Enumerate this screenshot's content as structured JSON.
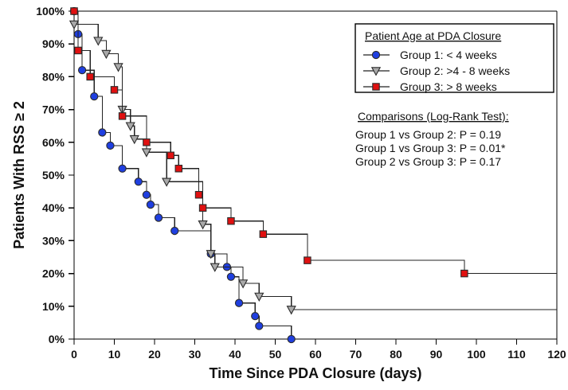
{
  "colors": {
    "background": "#ffffff",
    "axis": "#000000",
    "line": "#222222",
    "group1": "#1f3fe0",
    "group2": "#a9a9a9",
    "group3": "#e01010",
    "marker_stroke": "#2b2b2b"
  },
  "chart_data": {
    "type": "line",
    "title": "",
    "xlabel": "Time Since PDA Closure (days)",
    "ylabel": "Patients With RSS ≥ 2",
    "xlim": [
      0,
      120
    ],
    "ylim": [
      0,
      100
    ],
    "x_ticks": [
      0,
      10,
      20,
      30,
      40,
      50,
      60,
      70,
      80,
      90,
      100,
      110,
      120
    ],
    "y_ticks": [
      0,
      10,
      20,
      30,
      40,
      50,
      60,
      70,
      80,
      90,
      100
    ],
    "y_tick_labels": [
      "0%",
      "10%",
      "20%",
      "30%",
      "40%",
      "50%",
      "60%",
      "70%",
      "80%",
      "90%",
      "100%"
    ],
    "grid": false,
    "legend_position": "top-right",
    "legend": {
      "title": "Patient Age at PDA Closure",
      "entries": [
        {
          "label": "Group 1: < 4 weeks",
          "marker": "circle",
          "color": "#1f3fe0"
        },
        {
          "label": "Group 2: >4 - 8 weeks",
          "marker": "triangle-down",
          "color": "#a9a9a9"
        },
        {
          "label": "Group 3: > 8 weeks",
          "marker": "square",
          "color": "#e01010"
        }
      ]
    },
    "comparisons": {
      "title": "Comparisons (Log-Rank Test):",
      "lines": [
        "Group 1 vs Group 2: P = 0.19",
        "Group 1 vs Group 3: P = 0.01*",
        "Group 2 vs Group 3: P = 0.17"
      ]
    },
    "series": [
      {
        "name": "Group 1: < 4 weeks",
        "marker": "circle",
        "color": "#1f3fe0",
        "points": [
          [
            0,
            100
          ],
          [
            1,
            93
          ],
          [
            2,
            82
          ],
          [
            5,
            74
          ],
          [
            7,
            63
          ],
          [
            9,
            59
          ],
          [
            12,
            52
          ],
          [
            16,
            48
          ],
          [
            18,
            44
          ],
          [
            19,
            41
          ],
          [
            21,
            37
          ],
          [
            25,
            33
          ],
          [
            34,
            26
          ],
          [
            38,
            22
          ],
          [
            39,
            19
          ],
          [
            41,
            11
          ],
          [
            45,
            7
          ],
          [
            46,
            4
          ],
          [
            54,
            0
          ]
        ],
        "end_x": 54,
        "end_y": 0
      },
      {
        "name": "Group 2: >4 - 8 weeks",
        "marker": "triangle-down",
        "color": "#a9a9a9",
        "points": [
          [
            0,
            96
          ],
          [
            6,
            91
          ],
          [
            8,
            87
          ],
          [
            11,
            83
          ],
          [
            12,
            70
          ],
          [
            14,
            65
          ],
          [
            15,
            61
          ],
          [
            18,
            57
          ],
          [
            23,
            48
          ],
          [
            32,
            35
          ],
          [
            34,
            26
          ],
          [
            35,
            22
          ],
          [
            42,
            17
          ],
          [
            46,
            13
          ],
          [
            54,
            9
          ]
        ],
        "end_x": 120,
        "end_y": 9
      },
      {
        "name": "Group 3: > 8 weeks",
        "marker": "square",
        "color": "#e01010",
        "points": [
          [
            0,
            100
          ],
          [
            1,
            88
          ],
          [
            4,
            80
          ],
          [
            10,
            76
          ],
          [
            12,
            68
          ],
          [
            18,
            60
          ],
          [
            24,
            56
          ],
          [
            26,
            52
          ],
          [
            31,
            44
          ],
          [
            32,
            40
          ],
          [
            39,
            36
          ],
          [
            47,
            32
          ],
          [
            58,
            24
          ],
          [
            97,
            20
          ]
        ],
        "end_x": 120,
        "end_y": 20
      }
    ]
  }
}
